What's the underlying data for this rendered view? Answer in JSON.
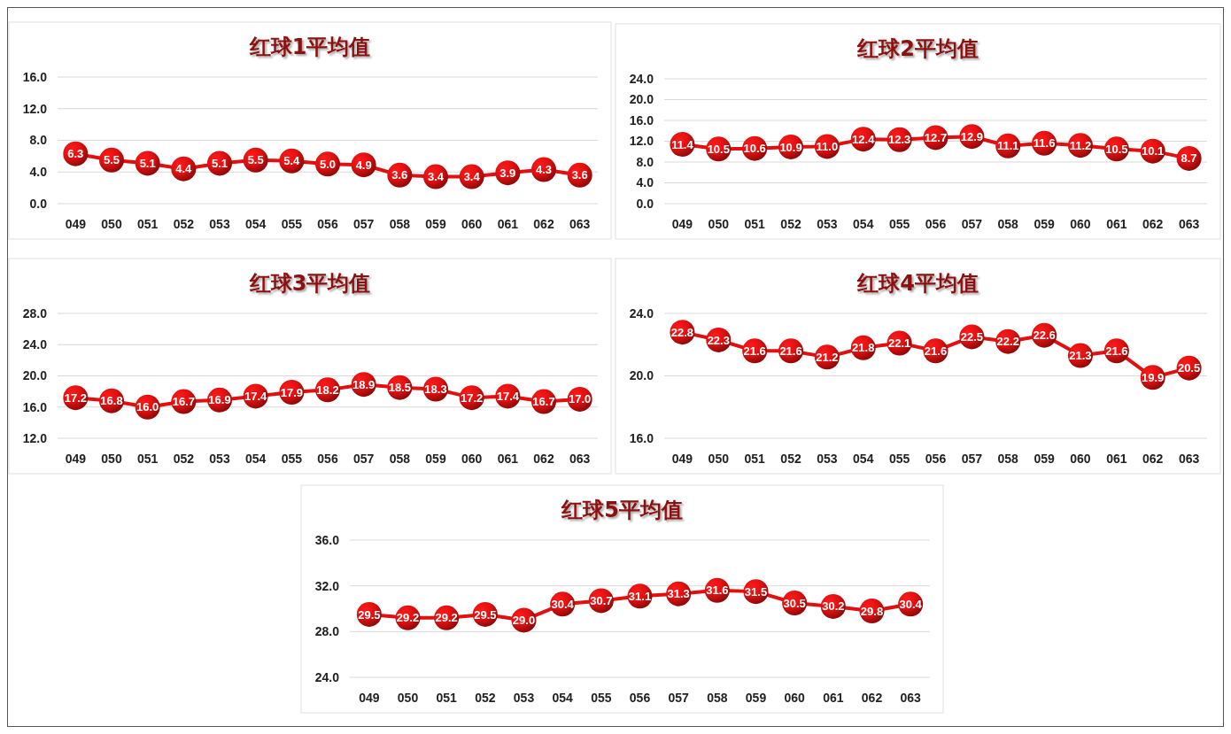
{
  "chart_data": [
    {
      "type": "line",
      "title": "红球1平均值",
      "categories": [
        "049",
        "050",
        "051",
        "052",
        "053",
        "054",
        "055",
        "056",
        "057",
        "058",
        "059",
        "060",
        "061",
        "062",
        "063"
      ],
      "series": [
        {
          "color": "#e01010",
          "values": [
            6.3,
            5.5,
            5.1,
            4.4,
            5.1,
            5.5,
            5.4,
            5.0,
            4.9,
            3.6,
            3.4,
            3.4,
            3.9,
            4.3,
            3.6
          ],
          "value_labels": [
            "6.3",
            "5.5",
            "5.1",
            "4.4",
            "5.1",
            "5.5",
            "5.4",
            "5.0",
            "4.9",
            "3.6",
            "3.4",
            "3.4",
            "3.9",
            "4.3",
            "3.6"
          ]
        }
      ],
      "ylim": [
        0,
        16
      ],
      "yticks": [
        {
          "value": 0,
          "label": "0.0"
        },
        {
          "value": 4,
          "label": "4.0"
        },
        {
          "value": 8,
          "label": "8.0"
        },
        {
          "value": 12,
          "label": "12.0"
        },
        {
          "value": 16,
          "label": "16.0"
        }
      ],
      "grid": "y",
      "marker": "circle"
    },
    {
      "type": "line",
      "title": "红球2平均值",
      "categories": [
        "049",
        "050",
        "051",
        "052",
        "053",
        "054",
        "055",
        "056",
        "057",
        "058",
        "059",
        "060",
        "061",
        "062",
        "063"
      ],
      "series": [
        {
          "color": "#e01010",
          "values": [
            11.4,
            10.5,
            10.6,
            10.9,
            11.0,
            12.4,
            12.3,
            12.7,
            12.9,
            11.1,
            11.6,
            11.2,
            10.5,
            10.1,
            8.7
          ],
          "value_labels": [
            "11.4",
            "10.5",
            "10.6",
            "10.9",
            "11.0",
            "12.4",
            "12.3",
            "12.7",
            "12.9",
            "11.1",
            "11.6",
            "11.2",
            "10.5",
            "10.1",
            "8.7"
          ]
        }
      ],
      "ylim": [
        0,
        24
      ],
      "yticks": [
        {
          "value": 0,
          "label": "0.0"
        },
        {
          "value": 4,
          "label": "4.0"
        },
        {
          "value": 8,
          "label": "8.0"
        },
        {
          "value": 12,
          "label": "12.0"
        },
        {
          "value": 16,
          "label": "16.0"
        },
        {
          "value": 20,
          "label": "20.0"
        },
        {
          "value": 24,
          "label": "24.0"
        }
      ],
      "grid": "y",
      "marker": "circle"
    },
    {
      "type": "line",
      "title": "红球3平均值",
      "categories": [
        "049",
        "050",
        "051",
        "052",
        "053",
        "054",
        "055",
        "056",
        "057",
        "058",
        "059",
        "060",
        "061",
        "062",
        "063"
      ],
      "series": [
        {
          "color": "#e01010",
          "values": [
            17.2,
            16.8,
            16.0,
            16.7,
            16.9,
            17.4,
            17.9,
            18.2,
            18.9,
            18.5,
            18.3,
            17.2,
            17.4,
            16.7,
            17.0
          ],
          "value_labels": [
            "17.2",
            "16.8",
            "16.0",
            "16.7",
            "16.9",
            "17.4",
            "17.9",
            "18.2",
            "18.9",
            "18.5",
            "18.3",
            "17.2",
            "17.4",
            "16.7",
            "17.0"
          ]
        }
      ],
      "ylim": [
        12,
        28
      ],
      "yticks": [
        {
          "value": 12,
          "label": "12.0"
        },
        {
          "value": 16,
          "label": "16.0"
        },
        {
          "value": 20,
          "label": "20.0"
        },
        {
          "value": 24,
          "label": "24.0"
        },
        {
          "value": 28,
          "label": "28.0"
        }
      ],
      "grid": "y",
      "marker": "circle"
    },
    {
      "type": "line",
      "title": "红球4平均值",
      "categories": [
        "049",
        "050",
        "051",
        "052",
        "053",
        "054",
        "055",
        "056",
        "057",
        "058",
        "059",
        "060",
        "061",
        "062",
        "063"
      ],
      "series": [
        {
          "color": "#e01010",
          "values": [
            22.8,
            22.3,
            21.6,
            21.6,
            21.2,
            21.8,
            22.1,
            21.6,
            22.5,
            22.2,
            22.6,
            21.3,
            21.6,
            19.9,
            20.5
          ],
          "value_labels": [
            "22.8",
            "22.3",
            "21.6",
            "21.6",
            "21.2",
            "21.8",
            "22.1",
            "21.6",
            "22.5",
            "22.2",
            "22.6",
            "21.3",
            "21.6",
            "19.9",
            "20.5"
          ]
        }
      ],
      "ylim": [
        16,
        24
      ],
      "yticks": [
        {
          "value": 16,
          "label": "16.0"
        },
        {
          "value": 20,
          "label": "20.0"
        },
        {
          "value": 24,
          "label": "24.0"
        }
      ],
      "grid": "y",
      "marker": "circle"
    },
    {
      "type": "line",
      "title": "红球5平均值",
      "categories": [
        "049",
        "050",
        "051",
        "052",
        "053",
        "054",
        "055",
        "056",
        "057",
        "058",
        "059",
        "060",
        "061",
        "062",
        "063"
      ],
      "series": [
        {
          "color": "#e01010",
          "values": [
            29.5,
            29.2,
            29.2,
            29.5,
            29.0,
            30.4,
            30.7,
            31.1,
            31.3,
            31.6,
            31.5,
            30.5,
            30.2,
            29.8,
            30.4
          ],
          "value_labels": [
            "29.5",
            "29.2",
            "29.2",
            "29.5",
            "29.0",
            "30.4",
            "30.7",
            "31.1",
            "31.3",
            "31.6",
            "31.5",
            "30.5",
            "30.2",
            "29.8",
            "30.4"
          ]
        }
      ],
      "ylim": [
        24,
        36
      ],
      "yticks": [
        {
          "value": 24,
          "label": "24.0"
        },
        {
          "value": 28,
          "label": "28.0"
        },
        {
          "value": 32,
          "label": "32.0"
        },
        {
          "value": 36,
          "label": "36.0"
        }
      ],
      "grid": "y",
      "marker": "circle"
    }
  ]
}
